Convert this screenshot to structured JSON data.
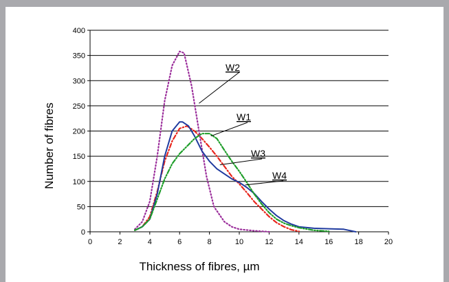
{
  "chart_data": {
    "type": "line",
    "xlabel": "Thickness of fibres, µm",
    "ylabel": "Number of fibres",
    "xlim": [
      0,
      20
    ],
    "ylim": [
      0,
      400
    ],
    "xticks": [
      0,
      2,
      4,
      6,
      8,
      10,
      12,
      14,
      16,
      18,
      20
    ],
    "yticks": [
      0,
      50,
      100,
      150,
      200,
      250,
      300,
      350,
      400
    ],
    "grid": "horizontal",
    "legend": "none",
    "series": [
      {
        "name": "W1",
        "style": "dash-dot",
        "color": "#e8251c",
        "x": [
          3,
          3.5,
          4,
          4.5,
          5,
          5.5,
          6,
          6.5,
          7,
          7.5,
          8,
          8.5,
          9,
          9.5,
          10,
          10.5,
          11,
          11.5,
          12,
          12.5,
          13,
          13.5,
          14
        ],
        "y": [
          3,
          10,
          30,
          80,
          140,
          180,
          205,
          210,
          200,
          185,
          168,
          150,
          130,
          110,
          95,
          78,
          60,
          45,
          30,
          18,
          10,
          4,
          1
        ]
      },
      {
        "name": "W2",
        "style": "dotted",
        "color": "#9b2e9b",
        "x": [
          3,
          3.5,
          4,
          4.5,
          5,
          5.5,
          6,
          6.3,
          6.8,
          7.3,
          7.8,
          8.3,
          9,
          9.5,
          10,
          11,
          12
        ],
        "y": [
          5,
          20,
          60,
          150,
          260,
          330,
          358,
          355,
          290,
          200,
          110,
          50,
          20,
          10,
          5,
          2,
          0
        ]
      },
      {
        "name": "W3",
        "style": "solid",
        "color": "#1f3a9f",
        "x": [
          3,
          3.5,
          4,
          4.5,
          5,
          5.5,
          6,
          6.2,
          6.6,
          7,
          7.5,
          8,
          8.5,
          9,
          9.5,
          10,
          10.5,
          11,
          11.5,
          12,
          12.5,
          13,
          13.5,
          14,
          15,
          16,
          17,
          17.8
        ],
        "y": [
          3,
          10,
          25,
          75,
          150,
          200,
          218,
          218,
          210,
          190,
          160,
          140,
          125,
          115,
          105,
          98,
          88,
          76,
          60,
          45,
          32,
          22,
          15,
          10,
          7,
          6,
          5,
          0
        ]
      },
      {
        "name": "W4",
        "style": "dash-dot-dot",
        "color": "#1f9e2a",
        "x": [
          3,
          3.5,
          4,
          4.5,
          5,
          5.5,
          6,
          6.5,
          7,
          7.5,
          8,
          8.5,
          9,
          9.5,
          10,
          10.5,
          11,
          11.5,
          12,
          12.5,
          13,
          13.5,
          14,
          15,
          16
        ],
        "y": [
          3,
          10,
          25,
          65,
          105,
          135,
          155,
          170,
          185,
          195,
          195,
          185,
          162,
          140,
          120,
          98,
          75,
          55,
          38,
          25,
          17,
          12,
          8,
          3,
          1
        ]
      }
    ],
    "annotations": [
      "W2",
      "W1",
      "W3",
      "W4"
    ]
  }
}
